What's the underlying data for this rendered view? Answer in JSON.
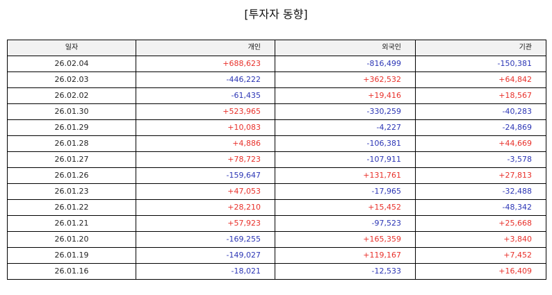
{
  "title": "[투자자 동향]",
  "headers": {
    "date": "일자",
    "individual": "개인",
    "foreign": "외국인",
    "institution": "기관"
  },
  "colors": {
    "positive": "#e8302a",
    "negative": "#2b35b5"
  },
  "rows": [
    {
      "date": "26.02.04",
      "individual": "+688,623",
      "foreign": "-816,499",
      "institution": "-150,381"
    },
    {
      "date": "26.02.03",
      "individual": "-446,222",
      "foreign": "+362,532",
      "institution": "+64,842"
    },
    {
      "date": "26.02.02",
      "individual": "-61,435",
      "foreign": "+19,416",
      "institution": "+18,567"
    },
    {
      "date": "26.01.30",
      "individual": "+523,965",
      "foreign": "-330,259",
      "institution": "-40,283"
    },
    {
      "date": "26.01.29",
      "individual": "+10,083",
      "foreign": "-4,227",
      "institution": "-24,869"
    },
    {
      "date": "26.01.28",
      "individual": "+4,886",
      "foreign": "-106,381",
      "institution": "+44,669"
    },
    {
      "date": "26.01.27",
      "individual": "+78,723",
      "foreign": "-107,911",
      "institution": "-3,578"
    },
    {
      "date": "26.01.26",
      "individual": "-159,647",
      "foreign": "+131,761",
      "institution": "+27,813"
    },
    {
      "date": "26.01.23",
      "individual": "+47,053",
      "foreign": "-17,965",
      "institution": "-32,488"
    },
    {
      "date": "26.01.22",
      "individual": "+28,210",
      "foreign": "+15,452",
      "institution": "-48,342"
    },
    {
      "date": "26.01.21",
      "individual": "+57,923",
      "foreign": "-97,523",
      "institution": "+25,668"
    },
    {
      "date": "26.01.20",
      "individual": "-169,255",
      "foreign": "+165,359",
      "institution": "+3,840"
    },
    {
      "date": "26.01.19",
      "individual": "-149,027",
      "foreign": "+119,167",
      "institution": "+7,452"
    },
    {
      "date": "26.01.16",
      "individual": "-18,021",
      "foreign": "-12,533",
      "institution": "+16,409"
    }
  ]
}
